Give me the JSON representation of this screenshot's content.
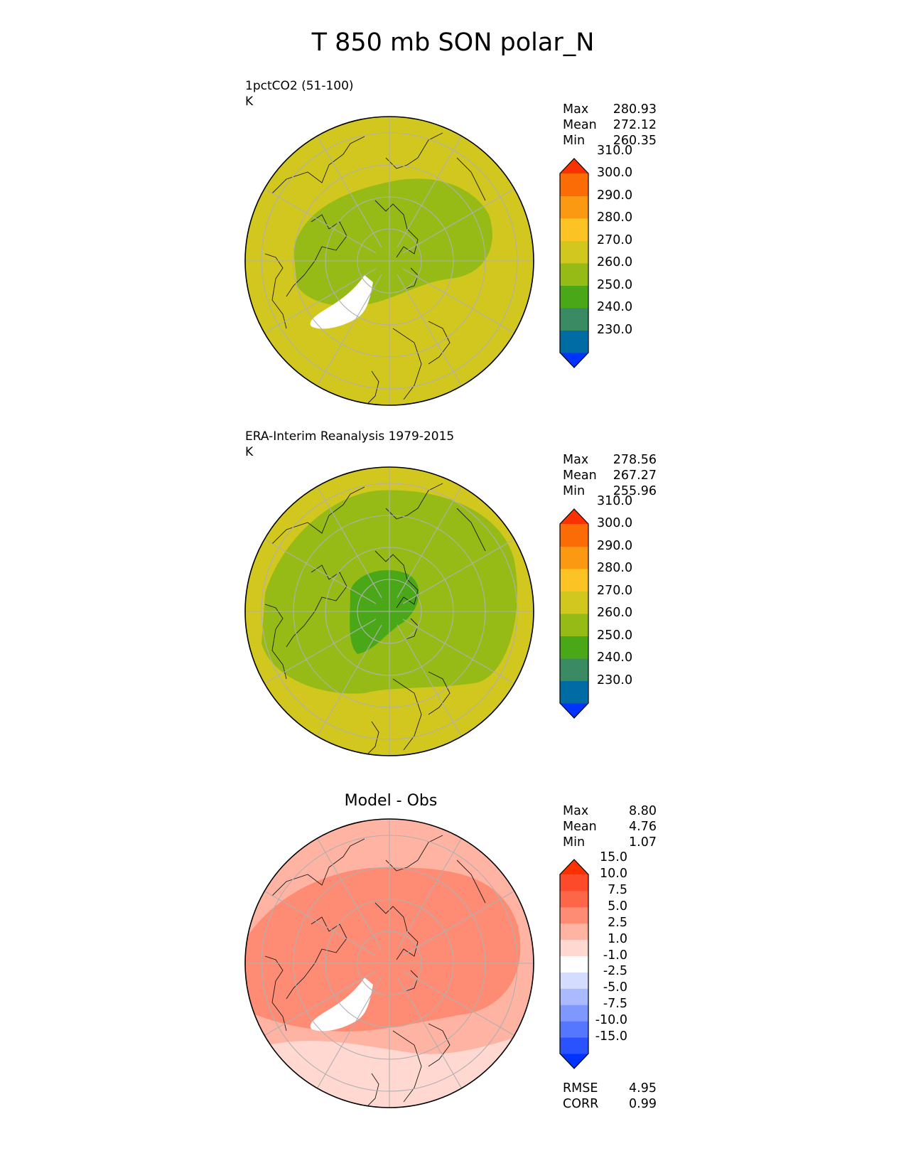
{
  "title": "T 850 mb SON polar_N",
  "panels": [
    {
      "label_line1": "1pctCO2 (51-100)",
      "label_line2": "K",
      "center_title": "",
      "stats": [
        {
          "key": "Max",
          "value": "280.93"
        },
        {
          "key": "Mean",
          "value": "272.12"
        },
        {
          "key": "Min",
          "value": "260.35"
        }
      ],
      "colorbar": {
        "colors": [
          "#0033ff",
          "#006ca4",
          "#3a8b63",
          "#4aa818",
          "#96ba16",
          "#d2c71e",
          "#fbc424",
          "#fb9a12",
          "#fb6b06",
          "#fb3100"
        ],
        "labels": [
          "230.0",
          "240.0",
          "250.0",
          "260.0",
          "270.0",
          "280.0",
          "290.0",
          "300.0",
          "310.0"
        ]
      }
    },
    {
      "label_line1": "ERA-Interim Reanalysis 1979-2015",
      "label_line2": "K",
      "center_title": "",
      "stats": [
        {
          "key": "Max",
          "value": "278.56"
        },
        {
          "key": "Mean",
          "value": "267.27"
        },
        {
          "key": "Min",
          "value": "255.96"
        }
      ],
      "colorbar": {
        "colors": [
          "#0033ff",
          "#006ca4",
          "#3a8b63",
          "#4aa818",
          "#96ba16",
          "#d2c71e",
          "#fbc424",
          "#fb9a12",
          "#fb6b06",
          "#fb3100"
        ],
        "labels": [
          "230.0",
          "240.0",
          "250.0",
          "260.0",
          "270.0",
          "280.0",
          "290.0",
          "300.0",
          "310.0"
        ]
      }
    },
    {
      "label_line1": "",
      "label_line2": "",
      "center_title": "Model - Obs",
      "stats": [
        {
          "key": "Max",
          "value": "8.80"
        },
        {
          "key": "Mean",
          "value": "4.76"
        },
        {
          "key": "Min",
          "value": "1.07"
        }
      ],
      "colorbar": {
        "colors": [
          "#0033ff",
          "#2a52ff",
          "#5577ff",
          "#7f98ff",
          "#a9baff",
          "#d4dcff",
          "#ffffff",
          "#ffd9d1",
          "#ffb3a3",
          "#fe8c74",
          "#fe6648",
          "#fc4a2a",
          "#fb3100"
        ],
        "labels": [
          "-15.0",
          "-10.0",
          "-7.5",
          "-5.0",
          "-2.5",
          "-1.0",
          "1.0",
          "2.5",
          "5.0",
          "7.5",
          "10.0",
          "15.0"
        ]
      },
      "footer": [
        {
          "key": "RMSE",
          "value": "4.95"
        },
        {
          "key": "CORR",
          "value": "0.99"
        }
      ]
    }
  ],
  "map_palettes": [
    {
      "outer": "#d2c71e",
      "mid": "#96ba16",
      "inner": "#96ba16",
      "blank": "#ffffff"
    },
    {
      "outer": "#d2c71e",
      "mid": "#96ba16",
      "inner": "#4aa818",
      "blank": "#ffffff"
    },
    {
      "outer": "#ffb3a3",
      "mid": "#fe8c74",
      "inner": "#fe8c74",
      "blank": "#ffffff",
      "south": "#ffd9d1"
    }
  ]
}
